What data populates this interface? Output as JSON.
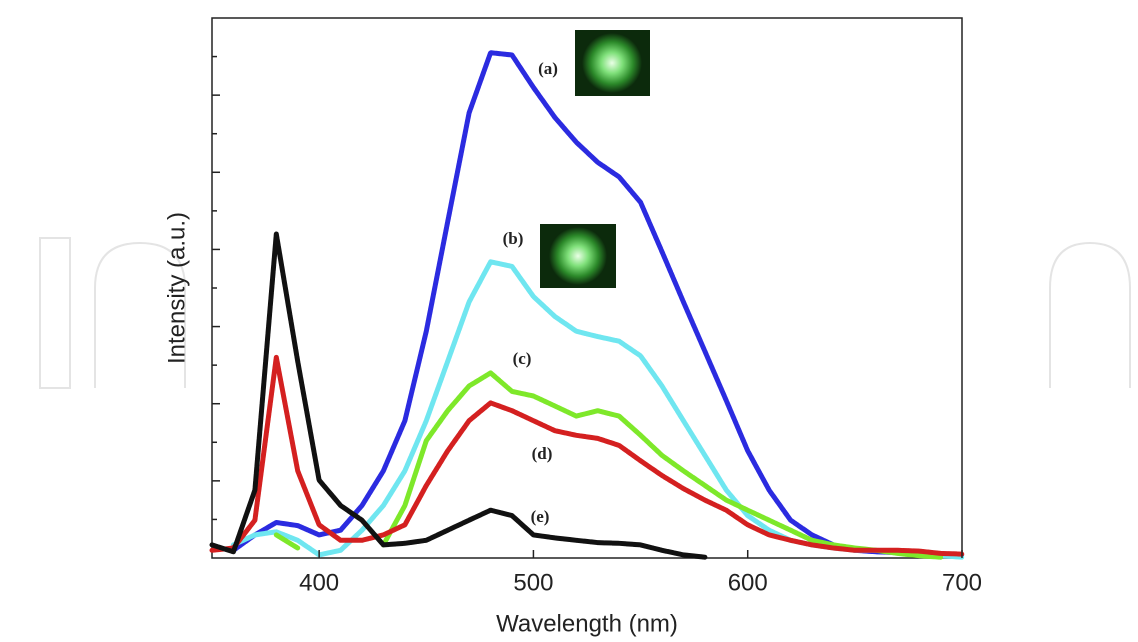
{
  "chart_data": {
    "type": "line",
    "x_label": "Wavelength (nm)",
    "y_label": "Intensity (a.u.)",
    "x": [
      350,
      360,
      370,
      380,
      390,
      400,
      410,
      420,
      430,
      440,
      450,
      460,
      470,
      480,
      490,
      500,
      510,
      520,
      530,
      540,
      550,
      560,
      570,
      580,
      590,
      600,
      610,
      620,
      630,
      640,
      650,
      660,
      670,
      680,
      690,
      700
    ],
    "xlim": [
      350,
      700
    ],
    "xticks": [
      400,
      500,
      600,
      700
    ],
    "ylim": [
      0,
      7
    ],
    "yticks": [
      0.5,
      1,
      1.5,
      2,
      2.5,
      3,
      3.5,
      4,
      4.5,
      5,
      5.5,
      6,
      6.5
    ],
    "series": [
      {
        "name": "(a)",
        "color": "#2b2be0",
        "values": [
          null,
          0.1,
          0.3,
          0.46,
          0.42,
          0.3,
          0.36,
          0.68,
          1.13,
          1.78,
          2.94,
          4.36,
          5.77,
          6.55,
          6.52,
          6.1,
          5.71,
          5.39,
          5.13,
          4.94,
          4.61,
          3.97,
          3.32,
          2.68,
          2.04,
          1.39,
          0.88,
          0.49,
          0.3,
          0.17,
          0.1,
          0.08,
          0.07,
          0.06,
          0.05,
          0.04
        ]
      },
      {
        "name": "(b)",
        "color": "#6fe6f0",
        "values": [
          null,
          0.17,
          0.3,
          0.34,
          0.23,
          0.04,
          0.1,
          0.36,
          0.68,
          1.13,
          1.78,
          2.55,
          3.32,
          3.84,
          3.78,
          3.39,
          3.13,
          2.94,
          2.87,
          2.81,
          2.62,
          2.23,
          1.78,
          1.33,
          0.88,
          0.55,
          0.36,
          0.23,
          0.17,
          0.13,
          0.1,
          0.1,
          0.08,
          0.04,
          0.03,
          0.01
        ]
      },
      {
        "name": "(c)",
        "color": "#7ee82a",
        "values": [
          null,
          null,
          null,
          0.3,
          0.13,
          null,
          null,
          null,
          0.17,
          0.68,
          1.52,
          1.91,
          2.23,
          2.4,
          2.16,
          2.1,
          1.97,
          1.84,
          1.91,
          1.84,
          1.59,
          1.33,
          1.13,
          0.94,
          0.75,
          0.62,
          0.49,
          0.36,
          0.23,
          0.17,
          0.13,
          0.1,
          0.06,
          0.03,
          0.01,
          null
        ]
      },
      {
        "name": "(d)",
        "color": "#d42020",
        "values": [
          0.1,
          0.13,
          0.49,
          2.6,
          1.13,
          0.43,
          0.23,
          0.23,
          0.3,
          0.43,
          0.94,
          1.39,
          1.78,
          2.01,
          1.91,
          1.78,
          1.65,
          1.59,
          1.55,
          1.46,
          1.26,
          1.07,
          0.9,
          0.75,
          0.62,
          0.43,
          0.3,
          0.23,
          0.17,
          0.13,
          0.1,
          0.1,
          0.1,
          0.09,
          0.06,
          0.05
        ]
      },
      {
        "name": "(e)",
        "color": "#111111",
        "values": [
          0.17,
          0.08,
          0.88,
          4.2,
          2.55,
          1.01,
          0.68,
          0.49,
          0.17,
          0.19,
          0.23,
          0.36,
          0.49,
          0.62,
          0.55,
          0.3,
          0.26,
          0.23,
          0.2,
          0.19,
          0.17,
          0.1,
          0.04,
          0.01,
          null,
          null,
          null,
          null,
          null,
          null,
          null,
          null,
          null,
          null,
          null,
          null
        ]
      }
    ]
  }
}
